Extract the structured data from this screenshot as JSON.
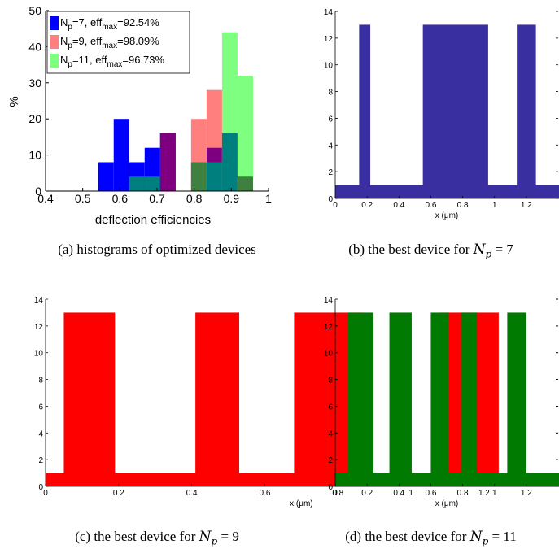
{
  "captions": [
    {
      "label": "(a)",
      "text": "histograms of optimized devices"
    },
    {
      "label": "(b)",
      "text": "the best device for",
      "var": "N",
      "sub": "p",
      "rel": " = ",
      "num": "7"
    },
    {
      "label": "(c)",
      "text": "the best device for",
      "var": "N",
      "sub": "p",
      "rel": " = ",
      "num": "9"
    },
    {
      "label": "(d)",
      "text": "the best device for",
      "var": "N",
      "sub": "p",
      "rel": " = ",
      "num": "11"
    }
  ],
  "colors": {
    "np7": "#0000ff",
    "np9": "#ff7f7f",
    "np11": "#7fff7f",
    "overlap_7_9": "#7f007f",
    "overlap_9_11": "#3f7f3f",
    "overlap_7_11": "#007f7f",
    "device7": "#3a2fa0",
    "device9": "#ff0000",
    "device11": "#007a00"
  },
  "chart_data": [
    {
      "type": "bar",
      "xlabel": "deflection efficiencies",
      "ylabel": "%",
      "xlim": [
        0.4,
        1.0
      ],
      "ylim": [
        0,
        50
      ],
      "xticks": [
        "0.4",
        "0.5",
        "0.6",
        "0.7",
        "0.8",
        "0.9",
        "1"
      ],
      "yticks": [
        "0",
        "10",
        "20",
        "30",
        "40",
        "50"
      ],
      "bin_width": 0.0417,
      "legend_position": "top-left",
      "legend": [
        {
          "main": "N",
          "sub": "p",
          "rest": "=7,   eff",
          "sub2": "max",
          "tail": "=92.54%"
        },
        {
          "main": "N",
          "sub": "p",
          "rest": "=9,   eff",
          "sub2": "max",
          "tail": "=98.09%"
        },
        {
          "main": "N",
          "sub": "p",
          "rest": "=11, eff",
          "sub2": "max",
          "tail": "=96.73%"
        }
      ],
      "series": [
        {
          "bins": [
            0.5625,
            0.6042,
            0.6458,
            0.6875,
            0.7292,
            0.8542,
            0.8958
          ],
          "values": [
            8,
            20,
            8,
            12,
            16,
            12,
            16
          ]
        },
        {
          "bins": [
            0.7292,
            0.8125,
            0.8542,
            0.9375
          ],
          "values": [
            16,
            20,
            28,
            4
          ]
        },
        {
          "bins": [
            0.6458,
            0.6875,
            0.8125,
            0.8542,
            0.8958,
            0.9375
          ],
          "values": [
            4,
            4,
            8,
            8,
            44,
            32
          ]
        }
      ]
    },
    {
      "type": "bar",
      "xlabel": "x (μm)",
      "xlim": [
        0,
        1.4
      ],
      "ylim": [
        0,
        14
      ],
      "xticks": [
        "0",
        "0.2",
        "0.4",
        "0.6",
        "0.8",
        "1",
        "1.2"
      ],
      "yticks": [
        "0",
        "2",
        "4",
        "6",
        "8",
        "10",
        "12",
        "14"
      ],
      "base": 1,
      "segments": [
        [
          0.15,
          0.22
        ],
        [
          0.55,
          0.96
        ],
        [
          1.14,
          1.26
        ]
      ],
      "height": 13
    },
    {
      "type": "bar",
      "xlabel": "x (μm)",
      "xlim": [
        0,
        1.4
      ],
      "ylim": [
        0,
        14
      ],
      "xticks": [
        "0",
        "0.2",
        "0.4",
        "0.6",
        "0.8",
        "1",
        "1.2"
      ],
      "yticks": [
        "0",
        "2",
        "4",
        "6",
        "8",
        "10",
        "12",
        "14"
      ],
      "base": 1,
      "segments": [
        [
          0.05,
          0.19
        ],
        [
          0.41,
          0.53
        ],
        [
          0.68,
          0.87
        ],
        [
          1.08,
          1.24
        ]
      ],
      "height": 13
    },
    {
      "type": "bar",
      "xlabel": "x (μm)",
      "xlim": [
        0,
        1.4
      ],
      "ylim": [
        0,
        14
      ],
      "xticks": [
        "0",
        "0.2",
        "0.4",
        "0.6",
        "0.8",
        "1",
        "1.2"
      ],
      "yticks": [
        "0",
        "2",
        "4",
        "6",
        "8",
        "10",
        "12",
        "14"
      ],
      "base": 1,
      "segments": [
        [
          0.08,
          0.24
        ],
        [
          0.34,
          0.48
        ],
        [
          0.6,
          0.71
        ],
        [
          0.79,
          0.89
        ],
        [
          1.08,
          1.2
        ]
      ],
      "height": 13
    }
  ]
}
